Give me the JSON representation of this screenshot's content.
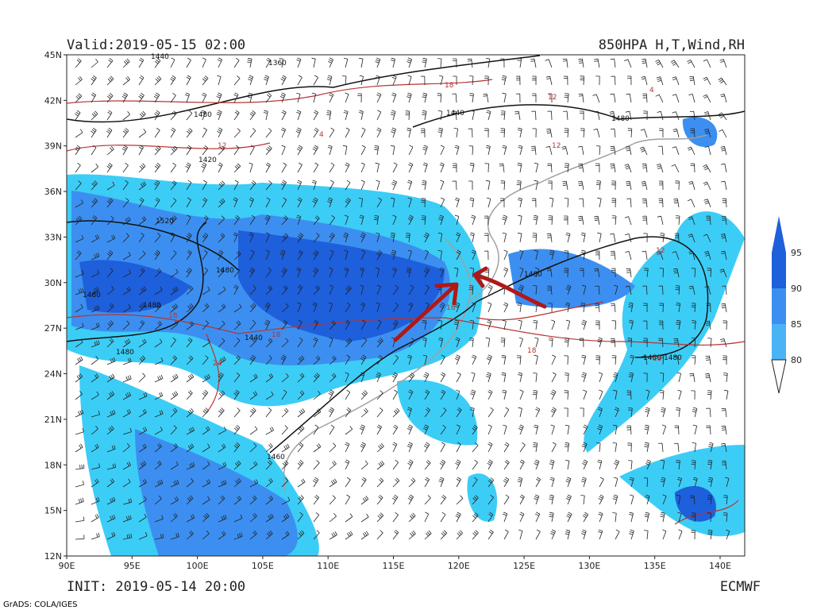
{
  "header": {
    "valid": "Valid:2019-05-15 02:00",
    "product": "850HPA H,T,Wind,RH"
  },
  "footer": {
    "init": "INIT: 2019-05-14 20:00",
    "model": "ECMWF",
    "credit": "GrADS: COLA/IGES"
  },
  "lat_labels": [
    "45N",
    "42N",
    "39N",
    "36N",
    "33N",
    "30N",
    "27N",
    "24N",
    "21N",
    "18N",
    "15N",
    "12N"
  ],
  "lon_labels": [
    "90E",
    "95E",
    "100E",
    "105E",
    "110E",
    "115E",
    "120E",
    "125E",
    "130E",
    "135E",
    "140E"
  ],
  "legend": {
    "labels": [
      "95",
      "90",
      "85",
      "80"
    ]
  },
  "height_labels": [
    "1440",
    "1360",
    "1480",
    "1440",
    "1480",
    "1420",
    "1520",
    "1480",
    "1480",
    "1480",
    "1480",
    "1440",
    "1480",
    "1480",
    "1460",
    "1480"
  ],
  "temp_labels": [
    "18",
    "12",
    "12",
    "12",
    "4",
    "18",
    "18",
    "24",
    "18",
    "18",
    "18",
    "12",
    "4"
  ]
}
